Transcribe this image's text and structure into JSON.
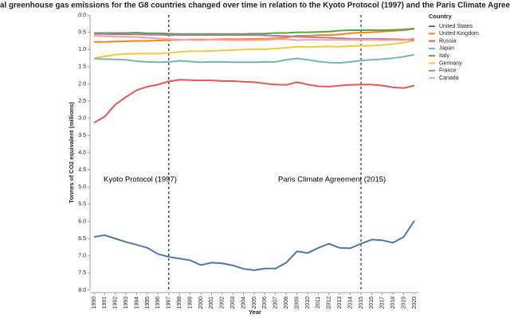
{
  "chart_data": {
    "type": "line",
    "title": "al greenhouse gas emissions for the G8 countries changed over time in relation to the Kyoto Protocol (1997) and the Paris Climate Agree",
    "x_label": "Year",
    "y_label": "Tonnes of CO2 equivalent (millions)",
    "legend_title": "Country",
    "legend_position": "right",
    "y_reversed": true,
    "x": [
      1990,
      1991,
      1992,
      1993,
      1994,
      1995,
      1996,
      1997,
      1998,
      1999,
      2000,
      2001,
      2002,
      2003,
      2004,
      2005,
      2006,
      2007,
      2008,
      2009,
      2010,
      2011,
      2012,
      2013,
      2014,
      2015,
      2016,
      2017,
      2018,
      2019,
      2020
    ],
    "xlim": [
      1990,
      2020
    ],
    "xticks": [
      1990,
      1991,
      1992,
      1993,
      1994,
      1995,
      1996,
      1997,
      1998,
      1999,
      2000,
      2001,
      2002,
      2003,
      2004,
      2005,
      2006,
      2007,
      2008,
      2009,
      2010,
      2011,
      2012,
      2013,
      2014,
      2015,
      2016,
      2017,
      2018,
      2019,
      2020
    ],
    "ylim": [
      0,
      8
    ],
    "yticks": [
      {
        "value": 0,
        "label": "0.0"
      },
      0.5,
      {
        "value": 1,
        "label": "1.0"
      },
      1.5,
      {
        "value": 2,
        "label": "2.0"
      },
      2.5,
      {
        "value": 3,
        "label": "3.0"
      },
      3.5,
      {
        "value": 4,
        "label": "4.0"
      },
      4.5,
      {
        "value": 5,
        "label": "5.0"
      },
      5.5,
      {
        "value": 6,
        "label": "6.0"
      },
      6.5,
      {
        "value": 7,
        "label": "7.0"
      },
      7.5,
      {
        "value": 8,
        "label": "8.0"
      }
    ],
    "series": [
      {
        "name": "United States",
        "color": "#4c78a8",
        "values": [
          6.45,
          6.4,
          6.5,
          6.6,
          6.68,
          6.77,
          6.95,
          7.03,
          7.08,
          7.13,
          7.27,
          7.2,
          7.22,
          7.28,
          7.38,
          7.42,
          7.37,
          7.37,
          7.2,
          6.87,
          6.92,
          6.77,
          6.65,
          6.77,
          6.78,
          6.65,
          6.53,
          6.55,
          6.62,
          6.45,
          5.98
        ]
      },
      {
        "name": "United Kingdom",
        "color": "#f58518",
        "values": [
          0.78,
          0.78,
          0.77,
          0.76,
          0.75,
          0.75,
          0.74,
          0.73,
          0.72,
          0.71,
          0.71,
          0.71,
          0.7,
          0.7,
          0.7,
          0.69,
          0.69,
          0.67,
          0.65,
          0.6,
          0.6,
          0.58,
          0.58,
          0.56,
          0.53,
          0.51,
          0.5,
          0.48,
          0.46,
          0.44,
          0.4
        ]
      },
      {
        "name": "Russia",
        "color": "#e45756",
        "values": [
          3.13,
          2.95,
          2.6,
          2.38,
          2.18,
          2.08,
          2.02,
          1.93,
          1.88,
          1.89,
          1.9,
          1.9,
          1.92,
          1.92,
          1.94,
          1.95,
          1.99,
          2.02,
          2.03,
          1.95,
          2.02,
          2.07,
          2.08,
          2.05,
          2.03,
          2.02,
          2.02,
          2.05,
          2.1,
          2.12,
          2.05
        ]
      },
      {
        "name": "Japan",
        "color": "#72b7b2",
        "values": [
          1.27,
          1.28,
          1.29,
          1.3,
          1.34,
          1.36,
          1.37,
          1.36,
          1.33,
          1.35,
          1.37,
          1.36,
          1.36,
          1.37,
          1.37,
          1.37,
          1.36,
          1.36,
          1.3,
          1.26,
          1.3,
          1.35,
          1.38,
          1.39,
          1.36,
          1.32,
          1.3,
          1.28,
          1.25,
          1.21,
          1.15
        ]
      },
      {
        "name": "Italy",
        "color": "#54a24b",
        "values": [
          0.52,
          0.52,
          0.52,
          0.52,
          0.51,
          0.53,
          0.53,
          0.54,
          0.55,
          0.55,
          0.55,
          0.55,
          0.55,
          0.55,
          0.55,
          0.54,
          0.54,
          0.52,
          0.52,
          0.5,
          0.5,
          0.49,
          0.48,
          0.45,
          0.44,
          0.44,
          0.44,
          0.44,
          0.43,
          0.42,
          0.39
        ]
      },
      {
        "name": "Germany",
        "color": "#eeca3b",
        "values": [
          1.25,
          1.2,
          1.15,
          1.13,
          1.12,
          1.12,
          1.12,
          1.1,
          1.07,
          1.05,
          1.05,
          1.04,
          1.03,
          1.02,
          1.0,
          0.99,
          0.99,
          0.97,
          0.95,
          0.92,
          0.93,
          0.92,
          0.91,
          0.92,
          0.9,
          0.89,
          0.89,
          0.87,
          0.84,
          0.8,
          0.74
        ]
      },
      {
        "name": "France",
        "color": "#b279a2",
        "values": [
          0.55,
          0.55,
          0.56,
          0.56,
          0.56,
          0.57,
          0.57,
          0.58,
          0.58,
          0.58,
          0.58,
          0.58,
          0.58,
          0.58,
          0.58,
          0.58,
          0.59,
          0.6,
          0.61,
          0.63,
          0.64,
          0.65,
          0.66,
          0.67,
          0.69,
          0.69,
          0.69,
          0.69,
          0.7,
          0.71,
          0.72
        ]
      },
      {
        "name": "Canada",
        "color": "#ff9da6",
        "values": [
          0.6,
          0.61,
          0.63,
          0.63,
          0.64,
          0.66,
          0.68,
          0.7,
          0.71,
          0.72,
          0.73,
          0.72,
          0.72,
          0.73,
          0.73,
          0.73,
          0.72,
          0.7,
          0.7,
          0.73,
          0.72,
          0.72,
          0.72,
          0.72,
          0.72,
          0.72,
          0.72,
          0.73,
          0.72,
          0.73,
          0.67
        ]
      }
    ],
    "annotations": [
      {
        "text": "Kyoto Protocol (1997)",
        "x": 1997
      },
      {
        "text": "Paris Climate Agreement (2015)",
        "x": 2015
      }
    ]
  }
}
